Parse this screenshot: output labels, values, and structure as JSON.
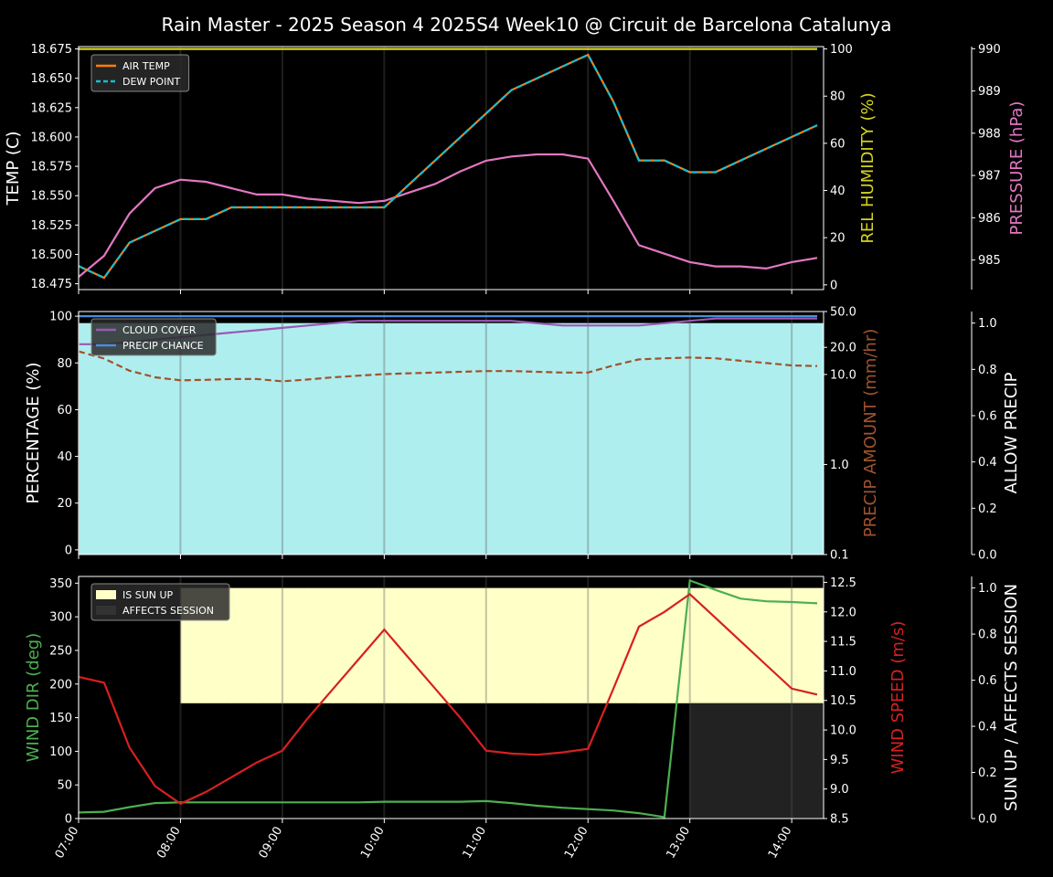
{
  "title": "Rain Master - 2025 Season 4 2025S4 Week10 @ Circuit de Barcelona Catalunya",
  "colors": {
    "background": "#000000",
    "air_temp": "#ff7f0e",
    "dew_point": "#17becf",
    "humidity": "#d4d41f",
    "pressure": "#e377c2",
    "cloud_cover": "#9b59b6",
    "precip_chance": "#4a90d9",
    "precip_amount": "#a0522d",
    "allow_precip_fill": "#afeeee",
    "sun_up_fill": "#ffffc8",
    "affects_session_fill": "#222222",
    "wind_dir": "#4caf50",
    "wind_speed": "#d62020"
  },
  "chart_data": [
    {
      "type": "line",
      "panel": "temperature",
      "x": [
        "07:00",
        "07:15",
        "07:30",
        "07:45",
        "08:00",
        "08:15",
        "08:30",
        "08:45",
        "09:00",
        "09:15",
        "09:30",
        "09:45",
        "10:00",
        "10:15",
        "10:30",
        "10:45",
        "11:00",
        "11:15",
        "11:30",
        "11:45",
        "12:00",
        "12:15",
        "12:30",
        "12:45",
        "13:00",
        "13:15",
        "13:30",
        "13:45",
        "14:00",
        "14:15"
      ],
      "series": [
        {
          "name": "AIR TEMP",
          "axis": "TEMP (C)",
          "values": [
            18.49,
            18.48,
            18.51,
            18.52,
            18.53,
            18.53,
            18.54,
            18.54,
            18.54,
            18.54,
            18.54,
            18.54,
            18.54,
            18.56,
            18.58,
            18.6,
            18.62,
            18.64,
            18.65,
            18.66,
            18.67,
            18.63,
            18.58,
            18.58,
            18.57,
            18.57,
            18.58,
            18.59,
            18.6,
            18.61
          ]
        },
        {
          "name": "DEW POINT",
          "axis": "TEMP (C)",
          "values": [
            18.49,
            18.48,
            18.51,
            18.52,
            18.53,
            18.53,
            18.54,
            18.54,
            18.54,
            18.54,
            18.54,
            18.54,
            18.54,
            18.56,
            18.58,
            18.6,
            18.62,
            18.64,
            18.65,
            18.66,
            18.67,
            18.63,
            18.58,
            18.58,
            18.57,
            18.57,
            18.58,
            18.59,
            18.6,
            18.61
          ]
        },
        {
          "name": "",
          "axis": "REL HUMIDITY (%)",
          "values": [
            100,
            100,
            100,
            100,
            100,
            100,
            100,
            100,
            100,
            100,
            100,
            100,
            100,
            100,
            100,
            100,
            100,
            100,
            100,
            100,
            100,
            100,
            100,
            100,
            100,
            100,
            100,
            100,
            100,
            100
          ]
        },
        {
          "name": "",
          "axis": "PRESSURE (hPa)",
          "values": [
            984.6,
            985.1,
            986.1,
            986.7,
            986.9,
            986.85,
            986.7,
            986.55,
            986.55,
            986.45,
            986.4,
            986.35,
            986.4,
            986.6,
            986.8,
            987.1,
            987.35,
            987.45,
            987.5,
            987.5,
            987.4,
            986.4,
            985.35,
            985.15,
            984.95,
            984.85,
            984.85,
            984.8,
            984.95,
            985.05
          ]
        }
      ],
      "axes": {
        "left": {
          "label": "TEMP (C)",
          "lim": [
            18.47,
            18.677
          ],
          "ticks": [
            "18.475",
            "18.500",
            "18.525",
            "18.550",
            "18.575",
            "18.600",
            "18.625",
            "18.650",
            "18.675"
          ]
        },
        "right": {
          "label": "REL HUMIDITY (%)",
          "lim": [
            -2,
            101
          ],
          "ticks": [
            "0",
            "20",
            "40",
            "60",
            "80",
            "100"
          ]
        },
        "far_right": {
          "label": "PRESSURE (hPa)",
          "lim": [
            984.3,
            990.05
          ],
          "ticks": [
            "985",
            "986",
            "987",
            "988",
            "989",
            "990"
          ]
        }
      },
      "legend": "top-left"
    },
    {
      "type": "line",
      "panel": "precipitation",
      "series": [
        {
          "name": "CLOUD COVER",
          "axis": "PERCENTAGE (%)",
          "values": [
            88,
            88,
            89,
            90,
            91,
            92,
            93,
            94,
            95,
            96,
            97,
            98,
            98,
            98,
            98,
            98,
            98,
            98,
            97,
            96,
            96,
            96,
            96,
            97,
            98,
            99,
            99,
            99,
            99,
            99
          ]
        },
        {
          "name": "PRECIP CHANCE",
          "axis": "PERCENTAGE (%)",
          "values": [
            100,
            100,
            100,
            100,
            100,
            100,
            100,
            100,
            100,
            100,
            100,
            100,
            100,
            100,
            100,
            100,
            100,
            100,
            100,
            100,
            100,
            100,
            100,
            100,
            100,
            100,
            100,
            100,
            100,
            100
          ]
        },
        {
          "name": "",
          "axis": "PRECIP AMOUNT (mm/hr)",
          "values": [
            18,
            15,
            11,
            9.3,
            8.6,
            8.7,
            8.9,
            8.9,
            8.4,
            8.8,
            9.3,
            9.7,
            10.1,
            10.3,
            10.5,
            10.7,
            10.9,
            10.9,
            10.7,
            10.5,
            10.5,
            12.6,
            14.7,
            15.1,
            15.4,
            15.1,
            14.2,
            13.4,
            12.6,
            12.4
          ]
        },
        {
          "name": "",
          "axis": "ALLOW PRECIP",
          "values": [
            1,
            1,
            1,
            1,
            1,
            1,
            1,
            1,
            1,
            1,
            1,
            1,
            1,
            1,
            1,
            1,
            1,
            1,
            1,
            1,
            1,
            1,
            1,
            1,
            1,
            1,
            1,
            1,
            1,
            1
          ]
        }
      ],
      "axes": {
        "left": {
          "label": "PERCENTAGE (%)",
          "lim": [
            -2,
            102
          ],
          "ticks": [
            "0",
            "20",
            "40",
            "60",
            "80",
            "100"
          ]
        },
        "right": {
          "label": "PRECIP AMOUNT (mm/hr)",
          "scale": "log",
          "lim": [
            0.1,
            50
          ],
          "ticks": [
            "0.1",
            "1.0",
            "10.0",
            "20.0",
            "50.0"
          ]
        },
        "far_right": {
          "label": "ALLOW PRECIP",
          "lim": [
            0,
            1.05
          ],
          "ticks": [
            "0.0",
            "0.2",
            "0.4",
            "0.6",
            "0.8",
            "1.0"
          ]
        }
      },
      "legend": "top-left"
    },
    {
      "type": "line",
      "panel": "wind",
      "x": [
        "07:00",
        "07:15",
        "07:30",
        "07:45",
        "08:00",
        "08:15",
        "08:30",
        "08:45",
        "09:00",
        "09:15",
        "09:30",
        "09:45",
        "10:00",
        "10:15",
        "10:30",
        "10:45",
        "11:00",
        "11:15",
        "11:30",
        "11:45",
        "12:00",
        "12:15",
        "12:30",
        "12:45",
        "13:00",
        "13:15",
        "13:30",
        "13:45",
        "14:00",
        "14:15"
      ],
      "x_ticks": [
        "07:00",
        "08:00",
        "09:00",
        "10:00",
        "11:00",
        "12:00",
        "13:00",
        "14:00"
      ],
      "series": [
        {
          "name": "",
          "axis": "WIND DIR (deg)",
          "values": [
            9,
            10,
            17,
            23,
            24,
            24,
            24,
            24,
            24,
            24,
            24,
            24,
            25,
            25,
            25,
            25,
            26,
            23,
            19,
            16,
            14,
            12,
            8,
            2,
            354,
            340,
            327,
            323,
            322,
            320
          ]
        },
        {
          "name": "",
          "axis": "WIND SPEED (m/s)",
          "values": [
            10.9,
            10.8,
            9.7,
            9.05,
            8.75,
            8.95,
            9.2,
            9.45,
            9.65,
            10.2,
            10.7,
            11.2,
            11.7,
            11.2,
            10.7,
            10.2,
            9.65,
            9.6,
            9.58,
            9.62,
            9.68,
            10.7,
            11.75,
            12.0,
            12.3,
            11.9,
            11.5,
            11.1,
            10.7,
            10.6
          ]
        },
        {
          "name": "IS SUN UP",
          "axis": "SUN UP / AFFECTS SESSION",
          "values": [
            0,
            0,
            0,
            0,
            1,
            1,
            1,
            1,
            1,
            1,
            1,
            1,
            1,
            1,
            1,
            1,
            1,
            1,
            1,
            1,
            1,
            1,
            1,
            1,
            1,
            1,
            1,
            1,
            1,
            1
          ]
        },
        {
          "name": "AFFECTS SESSION",
          "axis": "SUN UP / AFFECTS SESSION",
          "values": [
            0,
            0,
            0,
            0,
            0,
            0,
            0,
            0,
            0,
            0,
            0,
            0,
            0,
            0,
            0,
            0,
            0,
            0,
            0,
            0,
            0,
            0,
            0,
            0,
            1,
            1,
            1,
            1,
            1,
            1
          ]
        }
      ],
      "axes": {
        "left": {
          "label": "WIND DIR (deg)",
          "lim": [
            0,
            360
          ],
          "ticks": [
            "0",
            "50",
            "100",
            "150",
            "200",
            "250",
            "300",
            "350"
          ]
        },
        "right": {
          "label": "WIND SPEED (m/s)",
          "lim": [
            8.5,
            12.6
          ],
          "ticks": [
            "8.5",
            "9.0",
            "9.5",
            "10.0",
            "10.5",
            "11.0",
            "11.5",
            "12.0",
            "12.5"
          ]
        },
        "far_right": {
          "label": "SUN UP / AFFECTS SESSION",
          "lim": [
            0,
            1.05
          ],
          "ticks": [
            "0.0",
            "0.2",
            "0.4",
            "0.6",
            "0.8",
            "1.0"
          ]
        }
      },
      "legend": "top-left"
    }
  ]
}
